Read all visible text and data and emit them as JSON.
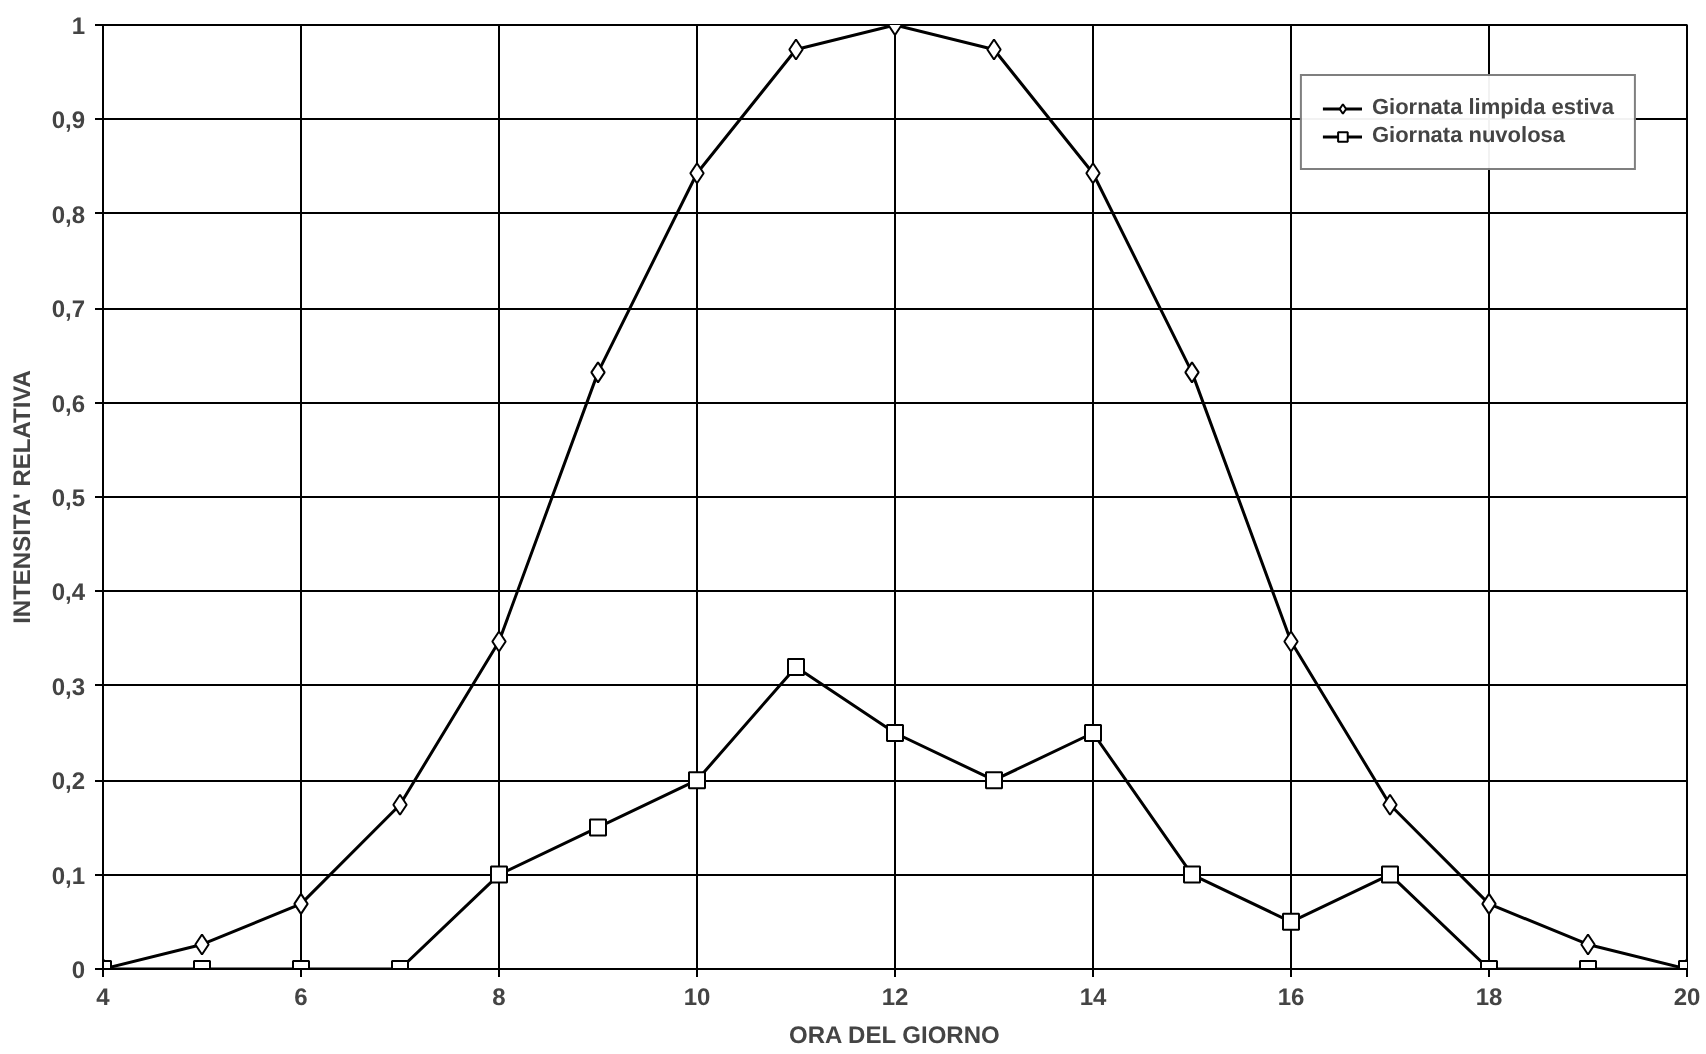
{
  "chart_data": {
    "type": "line",
    "xlabel": "ORA DEL GIORNO",
    "ylabel": "INTENSITA' RELATIVA",
    "x": [
      4,
      5,
      6,
      7,
      8,
      9,
      10,
      11,
      12,
      13,
      14,
      15,
      16,
      17,
      18,
      19,
      20
    ],
    "series": [
      {
        "name": "Giornata limpida estiva",
        "color": "#000000",
        "marker": "diamond",
        "values": [
          0,
          0.026,
          0.069,
          0.174,
          0.347,
          0.632,
          0.843,
          0.974,
          1,
          0.974,
          0.843,
          0.632,
          0.347,
          0.174,
          0.069,
          0.026,
          0
        ]
      },
      {
        "name": "Giornata nuvolosa",
        "color": "#000000",
        "marker": "square",
        "values": [
          0,
          0,
          0,
          0,
          0.1,
          0.15,
          0.2,
          0.32,
          0.25,
          0.2,
          0.25,
          0.1,
          0.05,
          0.1,
          0,
          0,
          0
        ]
      }
    ],
    "xlim": [
      4,
      20
    ],
    "xticks": [
      4,
      6,
      8,
      10,
      12,
      14,
      16,
      18,
      20
    ],
    "ylim": [
      0,
      1
    ],
    "yticks": [
      {
        "value": 0,
        "label": "0"
      },
      {
        "value": 0.1,
        "label": "0,1"
      },
      {
        "value": 0.2,
        "label": "0,2"
      },
      {
        "value": 0.3,
        "label": "0,3"
      },
      {
        "value": 0.4,
        "label": "0,4"
      },
      {
        "value": 0.5,
        "label": "0,5"
      },
      {
        "value": 0.6,
        "label": "0,6"
      },
      {
        "value": 0.7,
        "label": "0,7"
      },
      {
        "value": 0.8,
        "label": "0,8"
      },
      {
        "value": 0.9,
        "label": "0,9"
      },
      {
        "value": 1,
        "label": "1"
      }
    ],
    "grid": true,
    "legend": "top right",
    "line_style": "solid"
  }
}
